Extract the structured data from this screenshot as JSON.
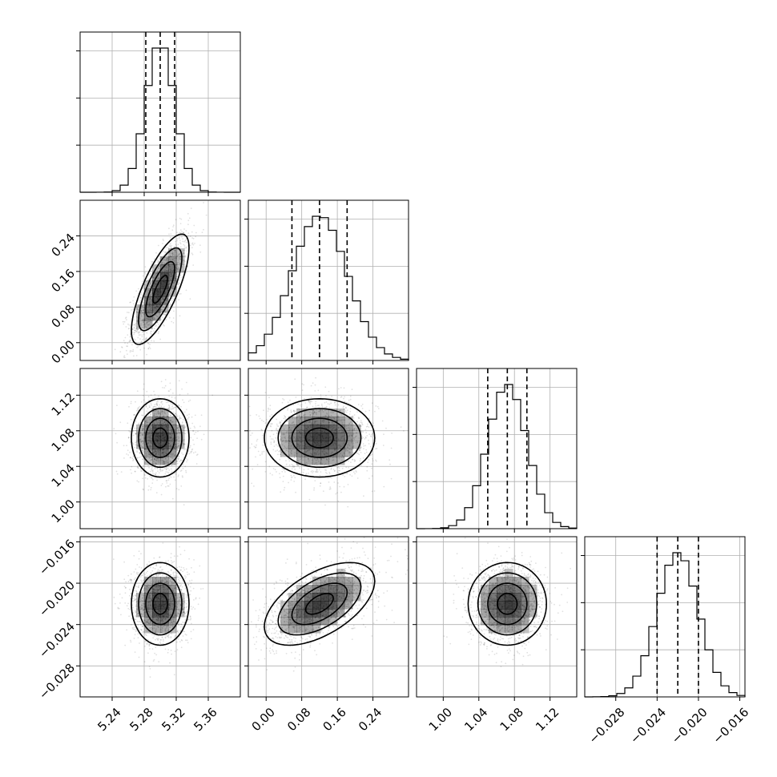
{
  "chart_data": {
    "type": "corner",
    "title": "",
    "parameters": [
      {
        "range": [
          5.2,
          5.4
        ],
        "ticks": [
          5.24,
          5.28,
          5.32,
          5.36
        ],
        "tick_labels": [
          "5.24",
          "5.28",
          "5.32",
          "5.36"
        ],
        "median": 5.3,
        "q16": 5.282,
        "q84": 5.318,
        "sigma": 0.018
      },
      {
        "range": [
          -0.04,
          0.32
        ],
        "ticks": [
          0.0,
          0.08,
          0.16,
          0.24
        ],
        "tick_labels": [
          "0.00",
          "0.08",
          "0.16",
          "0.24"
        ],
        "median": 0.12,
        "q16": 0.058,
        "q84": 0.182,
        "sigma": 0.062
      },
      {
        "range": [
          0.97,
          1.15
        ],
        "ticks": [
          1.0,
          1.04,
          1.08,
          1.12
        ],
        "tick_labels": [
          "1.00",
          "1.04",
          "1.08",
          "1.12"
        ],
        "median": 1.072,
        "q16": 1.05,
        "q84": 1.094,
        "sigma": 0.022
      },
      {
        "range": [
          -0.031,
          -0.0155
        ],
        "ticks": [
          -0.028,
          -0.024,
          -0.02,
          -0.016
        ],
        "tick_labels": [
          "−0.028",
          "−0.024",
          "−0.020",
          "−0.016"
        ],
        "median": -0.022,
        "q16": -0.024,
        "q84": -0.02,
        "sigma": 0.002
      }
    ],
    "correlations": [
      {
        "i": 1,
        "j": 0,
        "rho": 0.75
      },
      {
        "i": 2,
        "j": 0,
        "rho": 0.0
      },
      {
        "i": 2,
        "j": 1,
        "rho": 0.0
      },
      {
        "i": 3,
        "j": 0,
        "rho": 0.0
      },
      {
        "i": 3,
        "j": 1,
        "rho": 0.55
      },
      {
        "i": 3,
        "j": 2,
        "rho": 0.0
      }
    ],
    "grid": true,
    "quantile_line_style": "dashed",
    "histogram_style": "step",
    "colors": {
      "points": "#000000",
      "contour": "#000000",
      "hist": "#000000"
    }
  }
}
